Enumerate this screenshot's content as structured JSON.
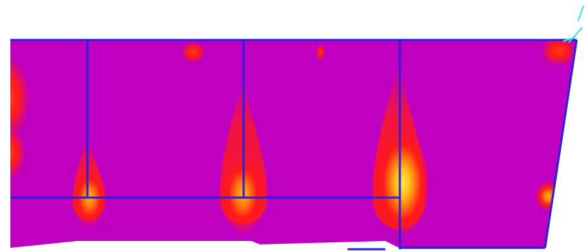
{
  "diagram": {
    "type": "stress-contour-plot",
    "colors": {
      "background": "#ffffff",
      "base_field": "#c000c0",
      "outline": "#2a1ee0",
      "red": "#ff1a1a",
      "orange": "#ff7a10",
      "yellow": "#ffd21e",
      "accent_cyan": "#2fe6e6"
    },
    "hotspots": [
      {
        "name": "left-edge-upper",
        "peak_level": "red"
      },
      {
        "name": "left-edge-lower",
        "peak_level": "red"
      },
      {
        "name": "column-1-base",
        "peak_level": "orange"
      },
      {
        "name": "column-2-base",
        "peak_level": "orange"
      },
      {
        "name": "column-3-base",
        "peak_level": "yellow"
      },
      {
        "name": "right-edge-lower",
        "peak_level": "orange"
      },
      {
        "name": "top-spot-1",
        "peak_level": "red"
      },
      {
        "name": "top-spot-2",
        "peak_level": "red"
      },
      {
        "name": "top-right-corner",
        "peak_level": "red"
      }
    ]
  }
}
